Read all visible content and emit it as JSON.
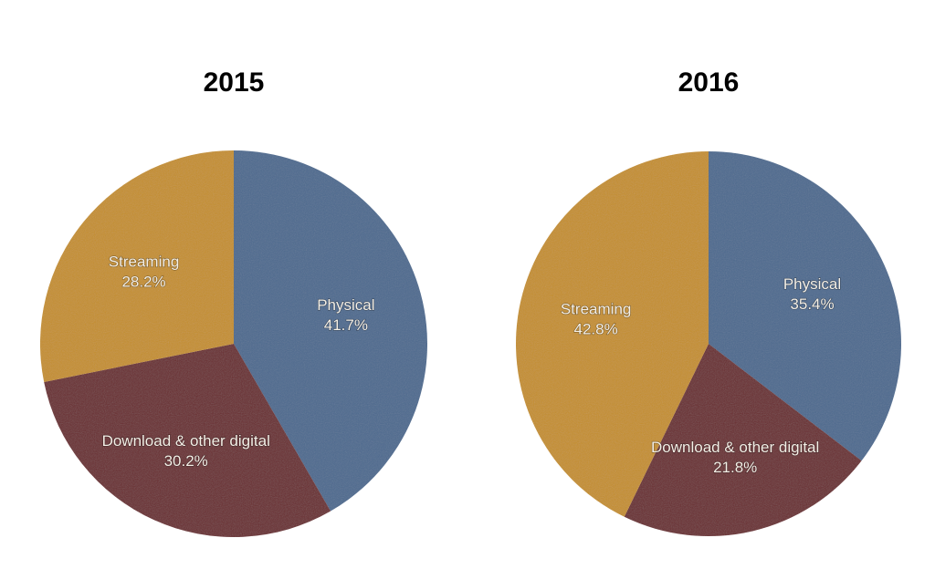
{
  "chart_data": [
    {
      "type": "pie",
      "title": "2015",
      "categories": [
        "Physical",
        "Download & other digital",
        "Streaming"
      ],
      "values": [
        41.7,
        30.2,
        28.2
      ],
      "value_labels": [
        "41.7%",
        "30.2%",
        "28.2%"
      ],
      "colors": [
        "#4e6b8f",
        "#6a2d30",
        "#c48f2e"
      ],
      "start": "12 o'clock, clockwise"
    },
    {
      "type": "pie",
      "title": "2016",
      "categories": [
        "Physical",
        "Download & other digital",
        "Streaming"
      ],
      "values": [
        35.4,
        21.8,
        42.8
      ],
      "value_labels": [
        "35.4%",
        "21.8%",
        "42.8%"
      ],
      "colors": [
        "#4e6b8f",
        "#6a2d30",
        "#c48f2e"
      ],
      "start": "12 o'clock, clockwise"
    }
  ]
}
